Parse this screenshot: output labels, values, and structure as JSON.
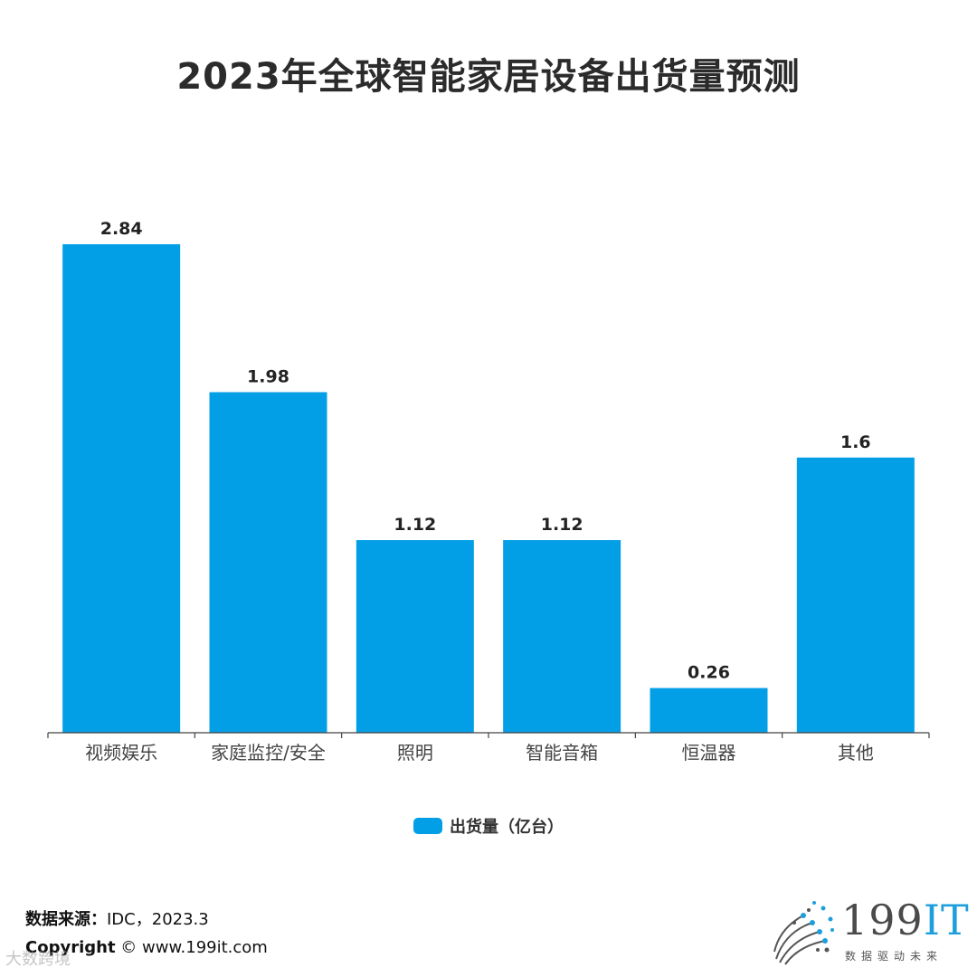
{
  "chart_data": {
    "type": "bar",
    "title": "2023年全球智能家居设备出货量预测",
    "categories": [
      "视频娱乐",
      "家庭监控/安全",
      "照明",
      "智能音箱",
      "恒温器",
      "其他"
    ],
    "series": [
      {
        "name": "出货量（亿台）",
        "values": [
          2.84,
          1.98,
          1.12,
          1.12,
          0.26,
          1.6
        ],
        "color": "#039fe6"
      }
    ],
    "data_labels": [
      "2.84",
      "1.98",
      "1.12",
      "1.12",
      "0.26",
      "1.6"
    ],
    "ylim": [
      0,
      2.84
    ],
    "grid": false,
    "legend_position": "bottom-center",
    "xlabel": "",
    "ylabel": ""
  },
  "footer": {
    "source_label": "数据来源：",
    "source_value": "IDC，2023.3",
    "copyright_label": "Copyright",
    "copyright_value": "© www.199it.com",
    "watermark": "大数跨境"
  },
  "logo": {
    "brand_num": "199",
    "brand_it": "IT",
    "tagline": "数据驱动未来"
  }
}
